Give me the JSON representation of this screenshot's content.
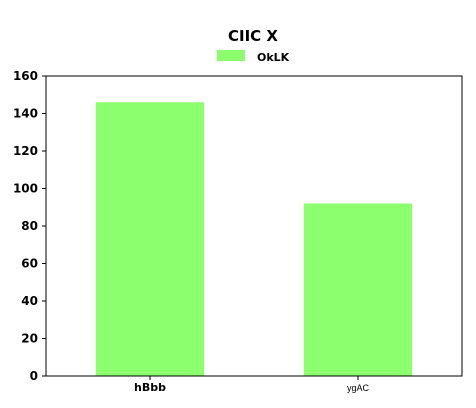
{
  "chart_data": {
    "type": "bar",
    "title": "CIIC X",
    "categories": [
      "hBbb",
      "ygAC"
    ],
    "series": [
      {
        "name": "OkLK",
        "values": [
          146,
          92
        ]
      }
    ],
    "xlabel": "",
    "ylabel": "",
    "ylim": [
      0,
      160
    ],
    "yticks": [
      0,
      20,
      40,
      60,
      80,
      100,
      120,
      140,
      160
    ],
    "grid": false,
    "legend_position": "top-center",
    "colors": {
      "bar": "#8cff6e",
      "axis": "#000000"
    }
  }
}
